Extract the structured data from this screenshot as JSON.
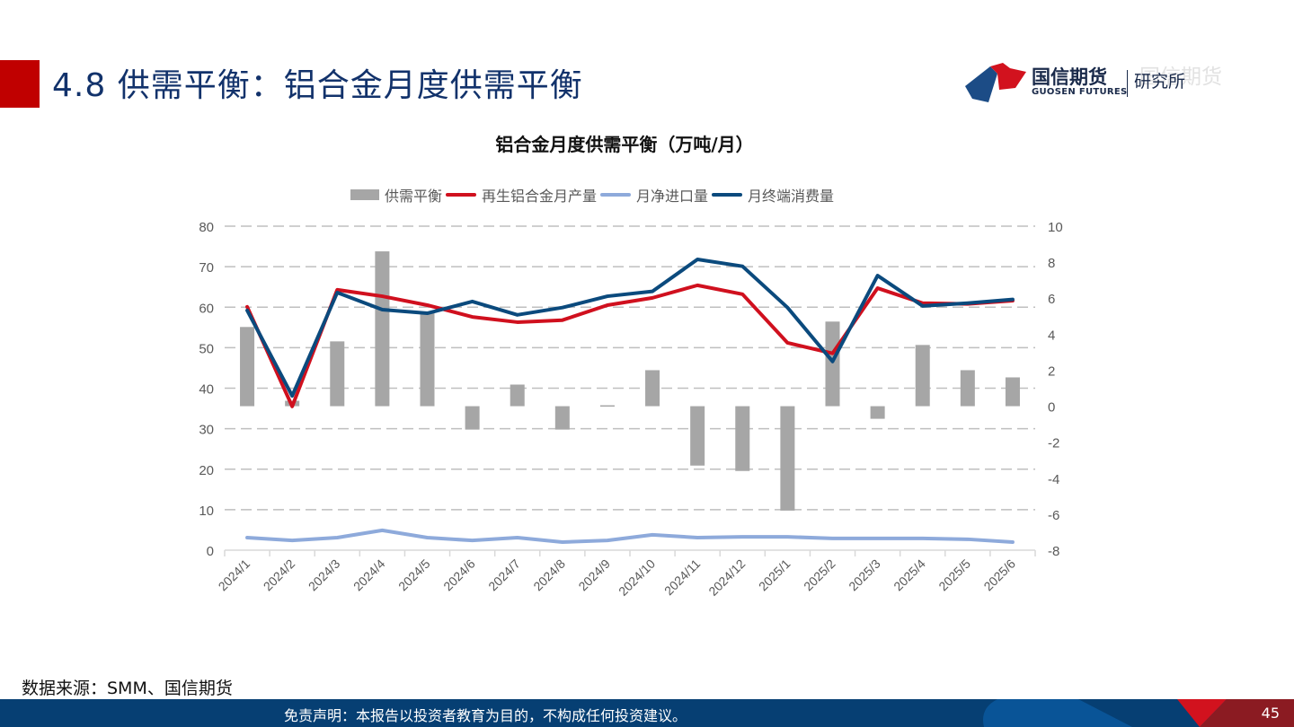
{
  "header": {
    "title": "4.8 供需平衡：铝合金月度供需平衡",
    "accent_color": "#c00000",
    "logo": {
      "name_cn": "国信期货",
      "name_en": "GUOSEN FUTURES",
      "department": "研究所"
    }
  },
  "chart_data": {
    "type": "bar+line",
    "title": "铝合金月度供需平衡（万吨/月）",
    "categories": [
      "2024/1",
      "2024/2",
      "2024/3",
      "2024/4",
      "2024/5",
      "2024/6",
      "2024/7",
      "2024/8",
      "2024/9",
      "2024/10",
      "2024/11",
      "2024/12",
      "2025/1",
      "2025/2",
      "2025/3",
      "2025/4",
      "2025/5",
      "2025/6"
    ],
    "series": [
      {
        "name": "供需平衡",
        "type": "bar",
        "axis": "right",
        "color": "#a6a6a6",
        "values": [
          4.4,
          0.3,
          3.6,
          8.6,
          5.2,
          -1.3,
          1.2,
          -1.3,
          0.05,
          2.0,
          -3.3,
          -3.6,
          -5.8,
          4.7,
          -0.7,
          3.4,
          2.0,
          1.6
        ]
      },
      {
        "name": "再生铝合金月产量",
        "type": "line",
        "axis": "left",
        "color": "#d0101e",
        "values": [
          60.1,
          35.5,
          64.3,
          62.7,
          60.5,
          57.6,
          56.3,
          56.8,
          60.5,
          62.3,
          65.4,
          63.2,
          51.2,
          48.6,
          64.7,
          61.0,
          60.8,
          61.6
        ]
      },
      {
        "name": "月净进口量",
        "type": "line",
        "axis": "left",
        "color": "#8eaadb",
        "values": [
          3.1,
          2.4,
          3.1,
          4.9,
          3.1,
          2.4,
          3.1,
          2.0,
          2.4,
          3.8,
          3.1,
          3.3,
          3.3,
          2.9,
          2.9,
          2.9,
          2.7,
          2.0
        ]
      },
      {
        "name": "月终端消费量",
        "type": "line",
        "axis": "left",
        "color": "#0b4a7d",
        "values": [
          59.2,
          38.1,
          63.6,
          59.4,
          58.5,
          61.4,
          58.1,
          59.9,
          62.7,
          63.9,
          71.8,
          70.1,
          59.9,
          46.6,
          67.8,
          60.3,
          61.0,
          61.9
        ]
      }
    ],
    "left_axis": {
      "min": 0,
      "max": 80,
      "step": 10,
      "ticks": [
        "0",
        "10",
        "20",
        "30",
        "40",
        "50",
        "60",
        "70",
        "80"
      ]
    },
    "right_axis": {
      "min": -8,
      "max": 10,
      "step": 2,
      "ticks": [
        "-8",
        "-6",
        "-4",
        "-2",
        "0",
        "2",
        "4",
        "6",
        "8",
        "10"
      ]
    },
    "grid": "dashed horizontal",
    "legend_position": "top"
  },
  "footer": {
    "source": "数据来源：SMM、国信期货",
    "disclaimer": "免责声明：本报告以投资者教育为目的，不构成任何投资建议。",
    "page_number": "45"
  }
}
